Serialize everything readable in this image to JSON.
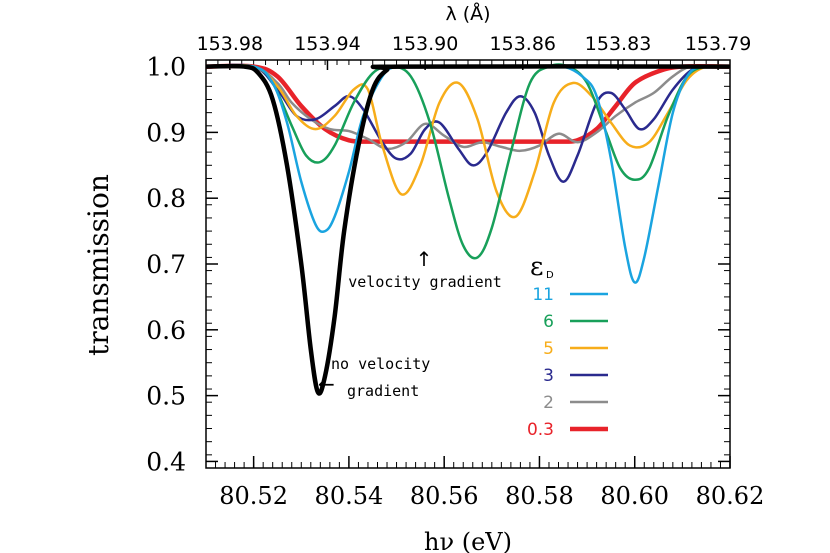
{
  "chart_data": {
    "type": "line",
    "title": "",
    "xlabel": "hν (eV)",
    "ylabel": "transmission",
    "top_axis_label": "λ (Å)",
    "xlim": [
      80.51,
      80.62
    ],
    "ylim": [
      0.39,
      1.01
    ],
    "x_ticks": [
      80.52,
      80.54,
      80.56,
      80.58,
      80.6,
      80.62
    ],
    "x_tick_labels": [
      "80.52",
      "80.54",
      "80.56",
      "80.58",
      "80.60",
      "80.62"
    ],
    "y_ticks": [
      0.4,
      0.5,
      0.6,
      0.7,
      0.8,
      0.9,
      1.0
    ],
    "y_tick_labels": [
      "0.4",
      "0.5",
      "0.6",
      "0.7",
      "0.8",
      "0.9",
      "1.0"
    ],
    "top_ticks": [
      {
        "x": 80.515,
        "label": "153.98"
      },
      {
        "x": 80.5355,
        "label": "153.94"
      },
      {
        "x": 80.556,
        "label": "153.90"
      },
      {
        "x": 80.5765,
        "label": "153.86"
      },
      {
        "x": 80.5965,
        "label": "153.83"
      },
      {
        "x": 80.6175,
        "label": "153.79"
      }
    ],
    "legend_title": "ε",
    "legend_title_sub": "D",
    "annotations": {
      "velocity_gradient": "velocity gradient",
      "no_velocity_line1": "no velocity",
      "no_velocity_line2": "gradient",
      "up_arrow": "↑",
      "left_arrow": "←"
    },
    "series": [
      {
        "name": "0.3",
        "label": "0.3",
        "color": "#e8232a",
        "width": 4.5,
        "points": [
          [
            80.51,
            1.0
          ],
          [
            80.52,
            1.0
          ],
          [
            80.525,
            0.985
          ],
          [
            80.53,
            0.94
          ],
          [
            80.535,
            0.905
          ],
          [
            80.54,
            0.888
          ],
          [
            80.545,
            0.886
          ],
          [
            80.55,
            0.886
          ],
          [
            80.56,
            0.886
          ],
          [
            80.57,
            0.886
          ],
          [
            80.58,
            0.886
          ],
          [
            80.585,
            0.886
          ],
          [
            80.588,
            0.888
          ],
          [
            80.592,
            0.905
          ],
          [
            80.596,
            0.94
          ],
          [
            80.6,
            0.975
          ],
          [
            80.605,
            0.993
          ],
          [
            80.61,
            1.0
          ],
          [
            80.62,
            1.0
          ]
        ]
      },
      {
        "name": "2",
        "label": "2",
        "color": "#8c8c8c",
        "width": 2.5,
        "points": [
          [
            80.51,
            1.0
          ],
          [
            80.52,
            1.0
          ],
          [
            80.525,
            0.975
          ],
          [
            80.528,
            0.945
          ],
          [
            80.532,
            0.92
          ],
          [
            80.536,
            0.905
          ],
          [
            80.54,
            0.902
          ],
          [
            80.544,
            0.89
          ],
          [
            80.548,
            0.875
          ],
          [
            80.552,
            0.885
          ],
          [
            80.556,
            0.913
          ],
          [
            80.56,
            0.895
          ],
          [
            80.564,
            0.878
          ],
          [
            80.568,
            0.885
          ],
          [
            80.572,
            0.878
          ],
          [
            80.576,
            0.872
          ],
          [
            80.58,
            0.88
          ],
          [
            80.584,
            0.898
          ],
          [
            80.588,
            0.885
          ],
          [
            80.592,
            0.9
          ],
          [
            80.596,
            0.925
          ],
          [
            80.6,
            0.945
          ],
          [
            80.604,
            0.96
          ],
          [
            80.608,
            0.985
          ],
          [
            80.612,
            1.0
          ],
          [
            80.62,
            1.0
          ]
        ]
      },
      {
        "name": "3",
        "label": "3",
        "color": "#2a2a8e",
        "width": 2.5,
        "points": [
          [
            80.51,
            1.0
          ],
          [
            80.52,
            1.0
          ],
          [
            80.525,
            0.965
          ],
          [
            80.529,
            0.925
          ],
          [
            80.533,
            0.92
          ],
          [
            80.537,
            0.94
          ],
          [
            80.54,
            0.955
          ],
          [
            80.543,
            0.935
          ],
          [
            80.547,
            0.885
          ],
          [
            80.55,
            0.86
          ],
          [
            80.553,
            0.868
          ],
          [
            80.556,
            0.905
          ],
          [
            80.559,
            0.915
          ],
          [
            80.563,
            0.875
          ],
          [
            80.566,
            0.85
          ],
          [
            80.569,
            0.87
          ],
          [
            80.573,
            0.93
          ],
          [
            80.576,
            0.955
          ],
          [
            80.579,
            0.93
          ],
          [
            80.582,
            0.865
          ],
          [
            80.585,
            0.825
          ],
          [
            80.588,
            0.865
          ],
          [
            80.592,
            0.945
          ],
          [
            80.595,
            0.96
          ],
          [
            80.598,
            0.935
          ],
          [
            80.601,
            0.905
          ],
          [
            80.604,
            0.92
          ],
          [
            80.608,
            0.965
          ],
          [
            80.612,
            0.995
          ],
          [
            80.616,
            1.0
          ],
          [
            80.62,
            1.0
          ]
        ]
      },
      {
        "name": "5",
        "label": "5",
        "color": "#f7ad1a",
        "width": 2.5,
        "points": [
          [
            80.51,
            1.0
          ],
          [
            80.52,
            1.0
          ],
          [
            80.525,
            0.97
          ],
          [
            80.529,
            0.925
          ],
          [
            80.533,
            0.905
          ],
          [
            80.537,
            0.925
          ],
          [
            80.541,
            0.965
          ],
          [
            80.544,
            0.965
          ],
          [
            80.547,
            0.88
          ],
          [
            80.551,
            0.806
          ],
          [
            80.555,
            0.85
          ],
          [
            80.559,
            0.945
          ],
          [
            80.563,
            0.975
          ],
          [
            80.567,
            0.92
          ],
          [
            80.571,
            0.81
          ],
          [
            80.575,
            0.772
          ],
          [
            80.579,
            0.84
          ],
          [
            80.583,
            0.945
          ],
          [
            80.587,
            0.975
          ],
          [
            80.591,
            0.955
          ],
          [
            80.595,
            0.915
          ],
          [
            80.599,
            0.88
          ],
          [
            80.603,
            0.885
          ],
          [
            80.607,
            0.93
          ],
          [
            80.611,
            0.98
          ],
          [
            80.615,
            1.0
          ],
          [
            80.62,
            1.0
          ]
        ]
      },
      {
        "name": "6",
        "label": "6",
        "color": "#18a05a",
        "width": 2.5,
        "points": [
          [
            80.51,
            1.0
          ],
          [
            80.52,
            1.0
          ],
          [
            80.524,
            0.975
          ],
          [
            80.528,
            0.91
          ],
          [
            80.531,
            0.865
          ],
          [
            80.534,
            0.855
          ],
          [
            80.537,
            0.88
          ],
          [
            80.541,
            0.945
          ],
          [
            80.545,
            0.99
          ],
          [
            80.549,
            1.0
          ],
          [
            80.553,
            0.985
          ],
          [
            80.557,
            0.915
          ],
          [
            80.561,
            0.8
          ],
          [
            80.564,
            0.728
          ],
          [
            80.567,
            0.71
          ],
          [
            80.57,
            0.755
          ],
          [
            80.574,
            0.87
          ],
          [
            80.578,
            0.975
          ],
          [
            80.582,
            1.0
          ],
          [
            80.586,
            1.0
          ],
          [
            80.59,
            0.975
          ],
          [
            80.594,
            0.9
          ],
          [
            80.597,
            0.845
          ],
          [
            80.6,
            0.828
          ],
          [
            80.603,
            0.845
          ],
          [
            80.607,
            0.925
          ],
          [
            80.611,
            0.985
          ],
          [
            80.615,
            1.0
          ],
          [
            80.62,
            1.0
          ]
        ]
      },
      {
        "name": "11",
        "label": "11",
        "color": "#1aa4e0",
        "width": 2.5,
        "points": [
          [
            80.51,
            1.0
          ],
          [
            80.52,
            1.0
          ],
          [
            80.524,
            0.975
          ],
          [
            80.527,
            0.915
          ],
          [
            80.53,
            0.825
          ],
          [
            80.533,
            0.76
          ],
          [
            80.535,
            0.75
          ],
          [
            80.537,
            0.772
          ],
          [
            80.54,
            0.84
          ],
          [
            80.543,
            0.925
          ],
          [
            80.547,
            0.985
          ],
          [
            80.55,
            1.0
          ],
          [
            80.555,
            1.0
          ],
          [
            80.58,
            1.0
          ],
          [
            80.585,
            1.0
          ],
          [
            80.589,
            0.985
          ],
          [
            80.592,
            0.955
          ],
          [
            80.595,
            0.86
          ],
          [
            80.598,
            0.725
          ],
          [
            80.6,
            0.672
          ],
          [
            80.602,
            0.71
          ],
          [
            80.605,
            0.82
          ],
          [
            80.608,
            0.93
          ],
          [
            80.611,
            0.985
          ],
          [
            80.614,
            1.0
          ],
          [
            80.62,
            1.0
          ]
        ]
      },
      {
        "name": "no-gradient",
        "label": "",
        "color": "#000000",
        "width": 4.5,
        "points": [
          [
            80.51,
            1.0
          ],
          [
            80.518,
            1.0
          ],
          [
            80.521,
            0.99
          ],
          [
            80.524,
            0.95
          ],
          [
            80.527,
            0.85
          ],
          [
            80.53,
            0.7
          ],
          [
            80.532,
            0.57
          ],
          [
            80.5335,
            0.505
          ],
          [
            80.535,
            0.53
          ],
          [
            80.537,
            0.62
          ],
          [
            80.539,
            0.75
          ],
          [
            80.542,
            0.88
          ],
          [
            80.545,
            0.965
          ],
          [
            80.548,
            0.995
          ],
          [
            80.551,
            1.0
          ],
          [
            80.62,
            1.0
          ]
        ]
      }
    ]
  }
}
